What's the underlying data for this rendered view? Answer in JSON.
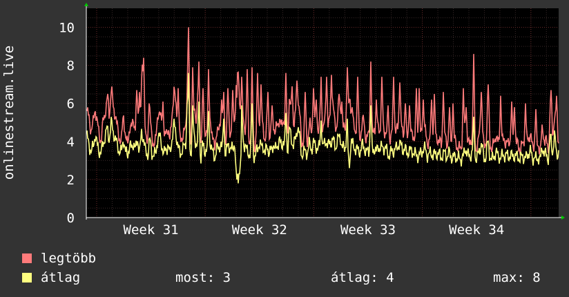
{
  "chart_data": {
    "type": "line",
    "ylabel": "onlinestream.live",
    "ylim": [
      0,
      11
    ],
    "yticks": [
      0,
      2,
      4,
      6,
      8,
      10
    ],
    "xticks": [
      "Week 31",
      "Week 32",
      "Week 33",
      "Week 34"
    ],
    "grid": true,
    "colors": {
      "background": "#333333",
      "plot": "#000000",
      "grid_minor": "#3a2a2a",
      "grid_major": "#6a2a2a",
      "axis": "#ffffff"
    },
    "series": [
      {
        "name": "legtöbb",
        "color": "#ff7b7b",
        "values": [
          5.6,
          5.2,
          4.6,
          4.9,
          5.8,
          5.0,
          4.4,
          4.0,
          5.1,
          5.6,
          5.9,
          5.3,
          6.8,
          5.8,
          5.4,
          4.7,
          4.2,
          4.0,
          5.5,
          4.2,
          3.8,
          4.8,
          4.6,
          5.3,
          4.3,
          5.6,
          4.1,
          6.1,
          5.4,
          4.1,
          3.9,
          5.3,
          4.2,
          3.9,
          4.0,
          5.6,
          5.4,
          4.9,
          3.9,
          4.4,
          4.8,
          3.9,
          5.5,
          6.7,
          5.8,
          4.6,
          4.0,
          4.3,
          4.5,
          4.6,
          4.1,
          3.9,
          4.0,
          5.5,
          5.1,
          4.6,
          3.6,
          5.0,
          4.2,
          4.7,
          3.8,
          5.2,
          4.2,
          3.6,
          4.6,
          4.4,
          5.1,
          4.3,
          3.8,
          4.4,
          4.7,
          4.5,
          4.3,
          5.2,
          7.8,
          7.1,
          5.0,
          5.1,
          4.8,
          4.3,
          4.1,
          3.9,
          4.0,
          3.7,
          4.5,
          4.9,
          4.6,
          4.8,
          4.0,
          4.8,
          4.2,
          4.3,
          4.9,
          4.4,
          4.9,
          5.2,
          4.7,
          5.3,
          4.4,
          4.1,
          6.2,
          5.3,
          4.8,
          5.3,
          6.2,
          5.6,
          3.9,
          4.1,
          4.2,
          4.1,
          4.9,
          4.5,
          4.9,
          4.9,
          4.5,
          4.7,
          4.4,
          4.8,
          5.3,
          4.6,
          5.2,
          5.2,
          5.2,
          4.7,
          5.3,
          5.7,
          4.5,
          4.6,
          4.9,
          5.5,
          6.3,
          4.8,
          4.7,
          4.5,
          4.3,
          4.3,
          4.8,
          4.7,
          4.1,
          4.3,
          4.4,
          4.2,
          4.7,
          4.2,
          4.8,
          4.5,
          4.7,
          4.6,
          4.3,
          4.1,
          4.2,
          4.3,
          4.5,
          4.5,
          5.0,
          4.8,
          4.5,
          4.5,
          4.2,
          4.4,
          4.3,
          4.4,
          4.1,
          4.0,
          3.8,
          4.3,
          4.5,
          4.6,
          3.9,
          4.1,
          4.2,
          4.0,
          4.1,
          4.2,
          4.0,
          3.8,
          4.0,
          4.2,
          3.9,
          4.2,
          3.8,
          3.7,
          4.1,
          3.7,
          3.6,
          3.7,
          3.8,
          4.6,
          4.0,
          3.8,
          4.2,
          3.8,
          3.6,
          3.8,
          4.5,
          5.0,
          3.7,
          3.9,
          5.1,
          4.1,
          3.5,
          3.9,
          4.4,
          3.9,
          3.9,
          3.9,
          4.1,
          4.0,
          3.8,
          4.1,
          3.8,
          4.1,
          3.9,
          3.8,
          3.6,
          3.8,
          3.9,
          3.7,
          4.2,
          4.4,
          3.7,
          3.9,
          3.4,
          3.9,
          3.5,
          4.8,
          4.0,
          4.0,
          3.6,
          5.5,
          4.2,
          5.4,
          4.2,
          4.1
        ],
        "peaks": [
          [
            30,
            6.5
          ],
          [
            72,
            6.7
          ],
          [
            76,
            6.6
          ],
          [
            80,
            8.0
          ],
          [
            82,
            8.4
          ],
          [
            90,
            6.0
          ],
          [
            110,
            6.1
          ],
          [
            132,
            6.8
          ],
          [
            145,
            6.0
          ],
          [
            146,
            6.6
          ],
          [
            147,
            10.0
          ],
          [
            153,
            7.9
          ],
          [
            160,
            6.1
          ],
          [
            162,
            8.2
          ],
          [
            168,
            6.8
          ],
          [
            176,
            7.8
          ],
          [
            195,
            6.2
          ],
          [
            198,
            6.6
          ],
          [
            204,
            6.8
          ],
          [
            211,
            6.7
          ],
          [
            217,
            6.3
          ],
          [
            224,
            7.4
          ],
          [
            232,
            7.8
          ],
          [
            239,
            7.9
          ],
          [
            247,
            7.6
          ],
          [
            252,
            7.0
          ],
          [
            262,
            6.6
          ],
          [
            268,
            5.9
          ],
          [
            288,
            7.6
          ],
          [
            297,
            6.9
          ],
          [
            304,
            7.2
          ],
          [
            316,
            6.6
          ],
          [
            328,
            6.8
          ],
          [
            332,
            6.2
          ],
          [
            339,
            7.4
          ],
          [
            347,
            7.4
          ],
          [
            354,
            7.5
          ],
          [
            356,
            6.1
          ],
          [
            365,
            6.5
          ],
          [
            369,
            6.1
          ],
          [
            377,
            7.9
          ],
          [
            384,
            5.8
          ],
          [
            392,
            7.4
          ],
          [
            400,
            5.4
          ],
          [
            411,
            8.2
          ],
          [
            419,
            6.2
          ],
          [
            427,
            7.4
          ],
          [
            436,
            5.9
          ],
          [
            444,
            7.4
          ],
          [
            453,
            7.1
          ],
          [
            461,
            6.0
          ],
          [
            467,
            5.9
          ],
          [
            477,
            6.8
          ],
          [
            481,
            6.8
          ],
          [
            487,
            6.2
          ],
          [
            499,
            6.2
          ],
          [
            503,
            6.5
          ],
          [
            516,
            6.6
          ],
          [
            525,
            5.8
          ],
          [
            530,
            6.0
          ],
          [
            545,
            6.8
          ],
          [
            549,
            5.8
          ],
          [
            560,
            8.6
          ],
          [
            571,
            6.6
          ],
          [
            581,
            7.0
          ],
          [
            599,
            6.4
          ],
          [
            615,
            6.1
          ],
          [
            619,
            5.8
          ],
          [
            635,
            6.0
          ],
          [
            650,
            5.7
          ],
          [
            672,
            6.7
          ],
          [
            680,
            6.4
          ]
        ]
      },
      {
        "name": "átlag",
        "color": "#ffff80",
        "values": [
          4.2,
          3.9,
          3.4,
          3.7,
          4.4,
          3.8,
          3.5,
          3.4,
          3.9,
          4.3,
          4.7,
          4.1,
          5.0,
          4.5,
          4.1,
          3.8,
          3.5,
          3.4,
          4.2,
          3.4,
          3.3,
          3.8,
          3.6,
          4.0,
          3.5,
          4.2,
          3.4,
          4.5,
          4.1,
          3.4,
          3.3,
          4.1,
          3.4,
          3.3,
          3.3,
          4.3,
          4.2,
          3.8,
          3.3,
          3.6,
          3.8,
          3.3,
          4.2,
          4.9,
          4.4,
          3.7,
          3.3,
          3.6,
          3.7,
          3.7,
          3.4,
          3.3,
          3.3,
          4.2,
          3.9,
          3.7,
          3.0,
          3.9,
          3.4,
          3.7,
          3.2,
          4.0,
          3.4,
          3.1,
          3.7,
          3.5,
          4.0,
          3.5,
          3.2,
          3.6,
          3.8,
          3.7,
          3.5,
          4.0,
          6.0,
          5.5,
          4.0,
          4.0,
          3.8,
          3.5,
          3.4,
          3.3,
          3.3,
          3.1,
          3.6,
          3.9,
          3.7,
          3.8,
          3.3,
          3.8,
          3.4,
          3.5,
          3.9,
          3.5,
          3.8,
          4.1,
          3.7,
          4.1,
          3.5,
          3.4,
          4.7,
          4.1,
          3.8,
          4.1,
          4.8,
          4.3,
          3.3,
          3.4,
          3.5,
          3.4,
          3.9,
          3.6,
          3.9,
          3.8,
          3.6,
          3.7,
          3.5,
          3.8,
          4.1,
          3.7,
          4.0,
          4.0,
          4.0,
          3.7,
          4.1,
          4.4,
          3.6,
          3.7,
          3.8,
          4.3,
          4.8,
          3.8,
          3.7,
          3.6,
          3.5,
          3.5,
          3.8,
          3.7,
          3.4,
          3.5,
          3.5,
          3.4,
          3.7,
          3.4,
          3.8,
          3.6,
          3.7,
          3.7,
          3.5,
          3.3,
          3.4,
          3.5,
          3.6,
          3.6,
          3.9,
          3.8,
          3.6,
          3.6,
          3.4,
          3.5,
          3.5,
          3.5,
          3.3,
          3.3,
          3.2,
          3.4,
          3.6,
          3.6,
          3.3,
          3.3,
          3.4,
          3.3,
          3.3,
          3.4,
          3.3,
          3.2,
          3.3,
          3.4,
          3.2,
          3.4,
          3.2,
          3.1,
          3.3,
          3.1,
          3.1,
          3.1,
          3.2,
          3.7,
          3.3,
          3.2,
          3.4,
          3.2,
          3.1,
          3.2,
          3.6,
          3.9,
          3.1,
          3.2,
          4.0,
          3.3,
          3.0,
          3.2,
          3.5,
          3.2,
          3.2,
          3.2,
          3.3,
          3.3,
          3.2,
          3.3,
          3.2,
          3.3,
          3.2,
          3.2,
          3.1,
          3.2,
          3.2,
          3.1,
          3.4,
          3.5,
          3.1,
          3.2,
          3.0,
          3.2,
          3.0,
          3.8,
          3.3,
          3.3,
          3.1,
          4.3,
          3.4,
          4.3,
          3.4,
          3.4
        ],
        "peaks": [
          [
            145,
            5.8
          ],
          [
            147,
            7.6
          ],
          [
            153,
            5.9
          ],
          [
            162,
            6.1
          ],
          [
            176,
            5.6
          ],
          [
            198,
            5.2
          ],
          [
            224,
            5.9
          ],
          [
            239,
            6.0
          ],
          [
            288,
            5.5
          ],
          [
            339,
            5.1
          ],
          [
            377,
            5.2
          ],
          [
            411,
            5.9
          ],
          [
            560,
            5.3
          ]
        ],
        "dips": [
          [
            217,
            2.0
          ],
          [
            219,
            1.8
          ],
          [
            221,
            2.3
          ],
          [
            380,
            2.6
          ]
        ]
      }
    ]
  },
  "legend": [
    {
      "label": "legtöbb",
      "color": "#ff7b7b"
    },
    {
      "label": "átlag",
      "color": "#ffff80"
    }
  ],
  "stats": {
    "most": "most: 3",
    "atlag": "átlag: 4",
    "max": "max: 8"
  }
}
